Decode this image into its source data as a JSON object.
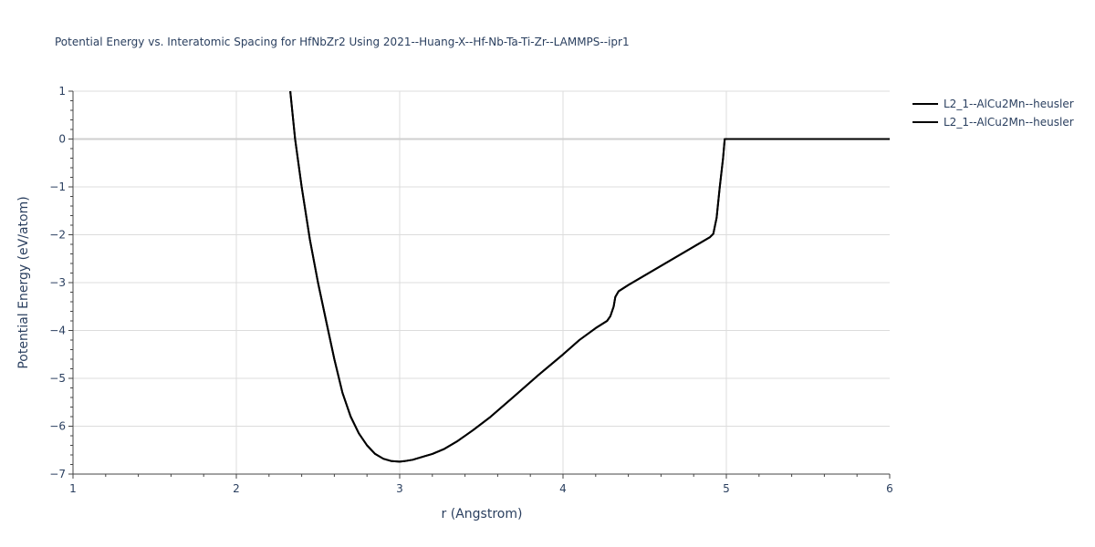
{
  "chart_data": {
    "type": "line",
    "title": "Potential Energy vs. Interatomic Spacing for HfNbZr2 Using 2021--Huang-X--Hf-Nb-Ta-Ti-Zr--LAMMPS--ipr1",
    "xlabel": "r (Angstrom)",
    "ylabel": "Potential Energy (eV/atom)",
    "xlim": [
      1,
      6
    ],
    "ylim": [
      -7,
      1
    ],
    "x_ticks": [
      "1",
      "2",
      "3",
      "4",
      "5",
      "6"
    ],
    "y_ticks": [
      "1",
      "0",
      "−1",
      "−2",
      "−3",
      "−4",
      "−5",
      "−6",
      "−7"
    ],
    "grid": true,
    "legend_position": "top-right",
    "series": [
      {
        "name": "L2_1--AlCu2Mn--heusler",
        "color": "#000000",
        "x": [
          2.33,
          2.36,
          2.4,
          2.45,
          2.5,
          2.55,
          2.6,
          2.65,
          2.7,
          2.75,
          2.8,
          2.85,
          2.9,
          2.95,
          3.0,
          3.03,
          3.08,
          3.15,
          3.2,
          3.27,
          3.35,
          3.45,
          3.55,
          3.7,
          3.85,
          4.0,
          4.1,
          4.2,
          4.27,
          4.29,
          4.31,
          4.32,
          4.34,
          4.4,
          4.5,
          4.6,
          4.7,
          4.8,
          4.9,
          4.92,
          4.94,
          4.96,
          4.98,
          4.99,
          5.0,
          5.1,
          5.3,
          5.6,
          6.0
        ],
        "y": [
          1.0,
          0.0,
          -1.0,
          -2.1,
          -3.0,
          -3.8,
          -4.6,
          -5.3,
          -5.8,
          -6.15,
          -6.4,
          -6.58,
          -6.68,
          -6.73,
          -6.74,
          -6.73,
          -6.7,
          -6.63,
          -6.58,
          -6.48,
          -6.32,
          -6.08,
          -5.82,
          -5.38,
          -4.93,
          -4.5,
          -4.2,
          -3.95,
          -3.8,
          -3.7,
          -3.5,
          -3.3,
          -3.18,
          -3.05,
          -2.85,
          -2.65,
          -2.45,
          -2.25,
          -2.05,
          -1.98,
          -1.65,
          -1.0,
          -0.4,
          0.0,
          0.0,
          0.0,
          0.0,
          0.0,
          0.0
        ]
      },
      {
        "name": "L2_1--AlCu2Mn--heusler",
        "color": "#000000",
        "x": [
          2.33,
          2.36,
          2.4,
          2.45,
          2.5,
          2.55,
          2.6,
          2.65,
          2.7,
          2.75,
          2.8,
          2.85,
          2.9,
          2.95,
          3.0,
          3.03,
          3.08,
          3.15,
          3.2,
          3.27,
          3.35,
          3.45,
          3.55,
          3.7,
          3.85,
          4.0,
          4.1,
          4.2,
          4.27,
          4.29,
          4.31,
          4.32,
          4.34,
          4.4,
          4.5,
          4.6,
          4.7,
          4.8,
          4.9,
          4.92,
          4.94,
          4.96,
          4.98,
          4.99,
          5.0,
          5.1,
          5.3,
          5.6,
          6.0
        ],
        "y": [
          1.0,
          0.0,
          -1.0,
          -2.1,
          -3.0,
          -3.8,
          -4.6,
          -5.3,
          -5.8,
          -6.15,
          -6.4,
          -6.58,
          -6.68,
          -6.73,
          -6.74,
          -6.73,
          -6.7,
          -6.63,
          -6.58,
          -6.48,
          -6.32,
          -6.08,
          -5.82,
          -5.38,
          -4.93,
          -4.5,
          -4.2,
          -3.95,
          -3.8,
          -3.7,
          -3.5,
          -3.3,
          -3.18,
          -3.05,
          -2.85,
          -2.65,
          -2.45,
          -2.25,
          -2.05,
          -1.98,
          -1.65,
          -1.0,
          -0.4,
          0.0,
          0.0,
          0.0,
          0.0,
          0.0,
          0.0
        ]
      }
    ]
  }
}
